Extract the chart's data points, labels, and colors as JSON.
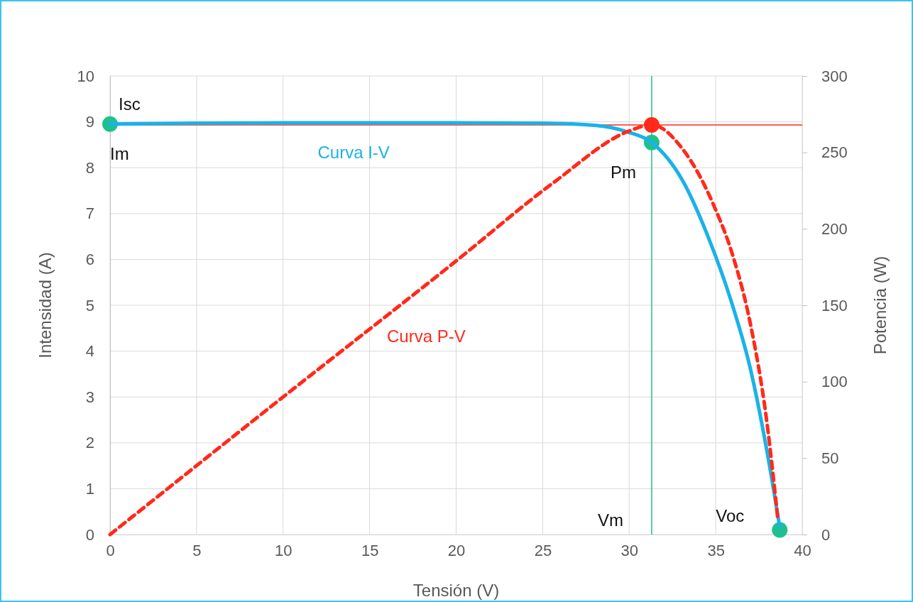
{
  "chart_data": {
    "type": "line",
    "xlabel": "Tensión (V)",
    "ylabel": "Intensidad (A)",
    "y2label": "Potencia (W)",
    "xlim": [
      0,
      40
    ],
    "xticks": [
      0,
      5,
      10,
      15,
      20,
      25,
      30,
      35,
      40
    ],
    "ylim": [
      0,
      10
    ],
    "yticks": [
      0,
      1,
      2,
      3,
      4,
      5,
      6,
      7,
      8,
      9,
      10
    ],
    "y2lim": [
      0,
      300
    ],
    "y2ticks": [
      0,
      50,
      100,
      150,
      200,
      250,
      300
    ],
    "grid": true,
    "series": [
      {
        "name": "Curva I-V",
        "color": "#1ab2e8",
        "line_style": "solid",
        "marker": "none",
        "x": [
          0,
          5,
          10,
          15,
          20,
          25,
          28.1,
          29.9,
          31.3,
          33.1,
          34.5,
          35.9,
          37.0,
          37.95,
          38.7
        ],
        "values": [
          8.95,
          8.97,
          8.98,
          8.98,
          8.98,
          8.97,
          8.92,
          8.78,
          8.55,
          7.71,
          6.55,
          5.08,
          3.62,
          1.84,
          0.16
        ]
      },
      {
        "name": "Curva P-V",
        "axis": "y2",
        "color": "#ff2a1a",
        "line_style": "dashed",
        "marker": "none",
        "x": [
          0,
          10,
          20,
          25.6,
          30.0,
          31.3,
          33.1,
          34.9,
          36.0,
          37.0,
          37.95,
          38.6
        ],
        "values": [
          0,
          90,
          179,
          230,
          264,
          268,
          252,
          215,
          182,
          138,
          74,
          9
        ]
      },
      {
        "type": "scatter",
        "color": "#1fc08f",
        "marker": "circle",
        "x": [
          0,
          31.3,
          38.7
        ],
        "values": [
          8.95,
          8.55,
          0.1
        ]
      },
      {
        "type": "scatter",
        "axis": "y2",
        "color": "#ff2a1a",
        "marker": "circle",
        "x": [
          31.3
        ],
        "values": [
          268
        ]
      }
    ],
    "ref_lines": [
      {
        "axis": "x",
        "value": 31.3,
        "color": "#1fc08f"
      },
      {
        "axis": "y2",
        "value": 268,
        "color": "#ff2a1a"
      }
    ],
    "annotations": [
      {
        "text": "Isc",
        "x": 0,
        "y": 8.95
      },
      "Im",
      {
        "text": "Pm",
        "x": 31.3,
        "y": 8.55
      },
      {
        "text": "Vm",
        "x": 31.3,
        "y": 0
      },
      {
        "text": "Voc",
        "x": 38.7,
        "y": 0.1
      }
    ]
  }
}
